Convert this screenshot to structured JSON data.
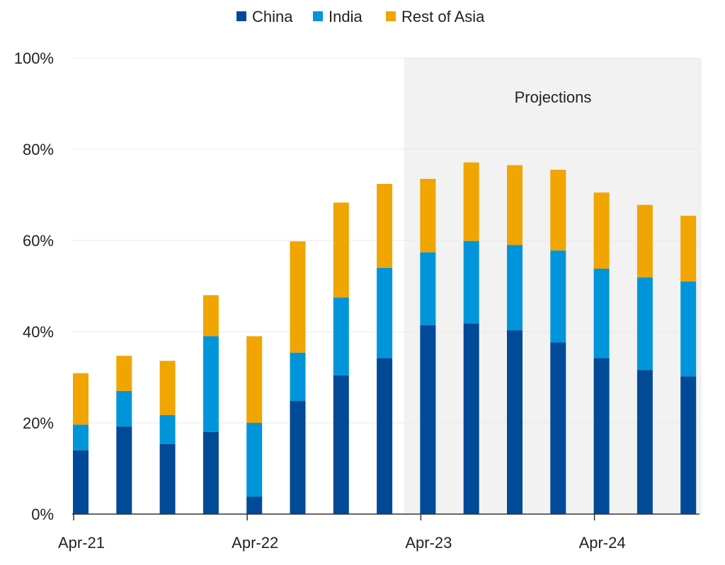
{
  "chart_data": {
    "type": "bar",
    "stacked": true,
    "legend_position": "top-center",
    "grid": true,
    "ylim": [
      0,
      100
    ],
    "y_ticks": [
      "0%",
      "20%",
      "40%",
      "60%",
      "80%",
      "100%"
    ],
    "x_tick_labels": [
      "Apr-21",
      "Apr-22",
      "Apr-23",
      "Apr-24"
    ],
    "x_tick_bar_index": [
      0,
      4,
      8,
      12
    ],
    "projection_label": "Projections",
    "projection_start_index": 8,
    "colors": {
      "China": "#004a97",
      "India": "#0095db",
      "Rest of Asia": "#f0a500",
      "projection_bg": "#f2f2f2",
      "grid": "#e8e8e8",
      "axis": "#333333"
    },
    "series": [
      {
        "name": "China",
        "values": [
          14,
          19.2,
          15.4,
          18,
          3.8,
          24.8,
          30.4,
          34.2,
          41.4,
          41.8,
          40.3,
          37.6,
          34.2,
          31.6,
          30.2
        ]
      },
      {
        "name": "India",
        "values": [
          5.6,
          7.8,
          6.3,
          21,
          16.2,
          10.6,
          17.1,
          19.8,
          16,
          18.1,
          18.7,
          20.2,
          19.6,
          20.3,
          20.8
        ]
      },
      {
        "name": "Rest of Asia",
        "values": [
          11.3,
          7.7,
          11.9,
          9,
          19,
          24.4,
          20.8,
          18.4,
          16.1,
          17.2,
          17.5,
          17.7,
          16.7,
          15.9,
          14.4
        ]
      }
    ]
  }
}
